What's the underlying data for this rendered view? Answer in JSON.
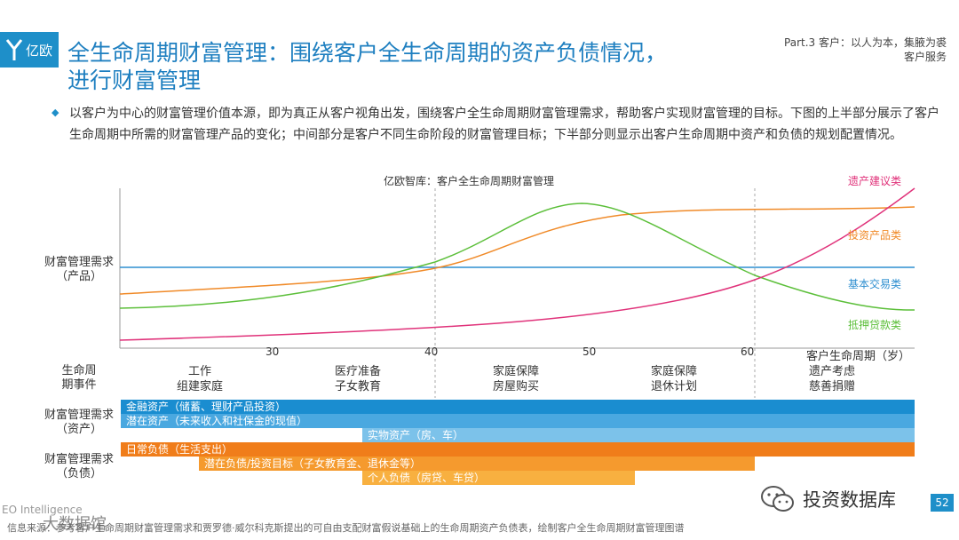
{
  "header": {
    "logo_text": "亿欧",
    "title_line1": "全生命周期财富管理：围绕客户全生命周期的资产负债情况，",
    "title_line2": "进行财富管理",
    "part_line1": "Part.3 客户：以人为本，集腋为裘",
    "part_line2": "客户服务"
  },
  "intro": {
    "bullet": "◆",
    "text": "以客户为中心的财富管理价值本源，即为真正从客户视角出发，围绕客户全生命周期财富管理需求，帮助客户实现财富管理的目标。下图的上半部分展示了客户生命周期中所需的财富管理产品的变化；中间部分是客户不同生命阶段的财富管理目标；下半部分则显示出客户生命周期中资产和负债的规划配置情况。"
  },
  "diagram": {
    "title": "亿欧智库：客户全生命周期财富管理",
    "y_label_line1": "财富管理需求",
    "y_label_line2": "（产品）",
    "series": [
      {
        "name": "遗产建议类",
        "color": "#e0327a"
      },
      {
        "name": "投资产品类",
        "color": "#f08a28"
      },
      {
        "name": "基本交易类",
        "color": "#2f8fd0"
      },
      {
        "name": "抵押贷款类",
        "color": "#5cbf3a"
      }
    ],
    "ticks": [
      "30",
      "40",
      "50",
      "60"
    ],
    "x_label": "客户生命周期（岁）",
    "events_label_line1": "生命周",
    "events_label_line2": "期事件",
    "events": [
      {
        "line1": "工作",
        "line2": "组建家庭"
      },
      {
        "line1": "医疗准备",
        "line2": "子女教育"
      },
      {
        "line1": "家庭保障",
        "line2": "房屋购买"
      },
      {
        "line1": "家庭保障",
        "line2": "退休计划"
      },
      {
        "line1": "遗产考虑",
        "line2": "慈善捐赠"
      }
    ],
    "assets_label_line1": "财富管理需求",
    "assets_label_line2": "（资产）",
    "assets": [
      {
        "label": "金融资产（储蓄、理财产品投资）",
        "color": "#1a8dd0"
      },
      {
        "label": "潜在资产（未来收入和社保金的现值）",
        "color": "#4aa8e0"
      },
      {
        "label": "实物资产（房、车）",
        "color": "#7cc2ea"
      }
    ],
    "liabilities_label_line1": "财富管理需求",
    "liabilities_label_line2": "（负债）",
    "liabilities": [
      {
        "label": "日常负债（生活支出）",
        "color": "#f07d1a"
      },
      {
        "label": "潜在负债/投资目标（子女教育金、退休金等）",
        "color": "#f59a2e"
      },
      {
        "label": "个人负债（房贷、车贷）",
        "color": "#f8b040"
      }
    ]
  },
  "footer": {
    "source": "信息来源：参考客户生命周期财富管理需求和贾罗德·威尔科克斯提出的可自由支配财富假说基础上的生命周期资产负债表，绘制客户全生命周期财富管理图谱",
    "eo": "EO Intelligence",
    "watermark1": "大数据馆",
    "wechat_text": "投资数据库",
    "page_number": "52"
  }
}
